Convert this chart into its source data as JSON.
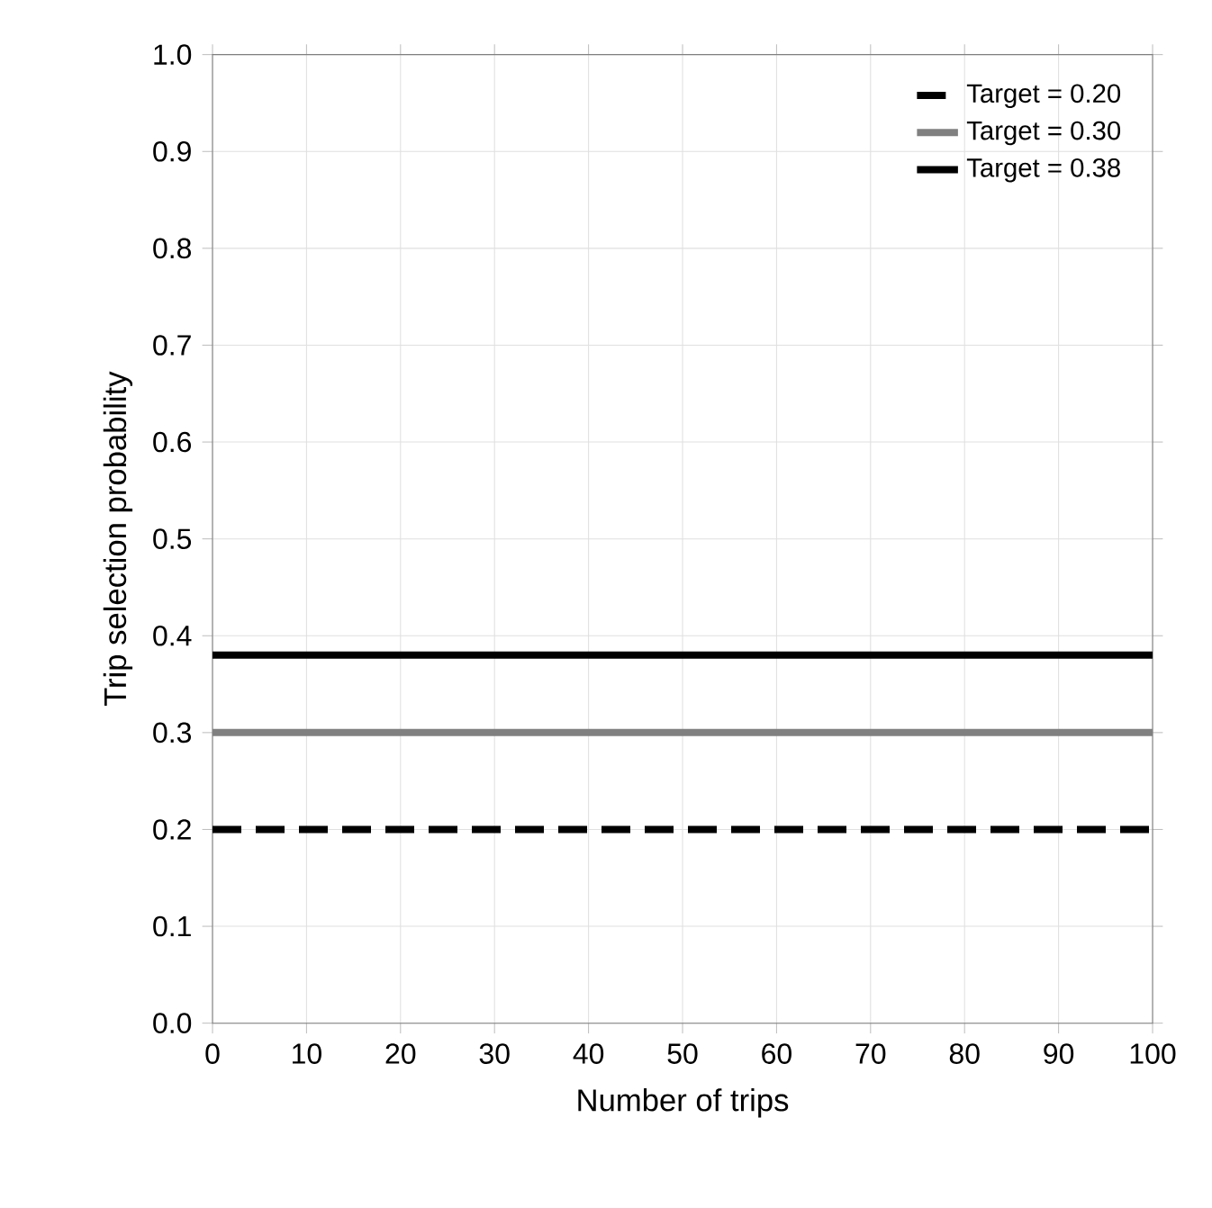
{
  "chart_data": {
    "type": "line",
    "xlabel": "Number of trips",
    "ylabel": "Trip selection probability",
    "xlim": [
      0,
      100
    ],
    "ylim": [
      0,
      1
    ],
    "xticks": [
      0,
      10,
      20,
      30,
      40,
      50,
      60,
      70,
      80,
      90,
      100
    ],
    "yticks": [
      {
        "value": 0,
        "label": "0.0"
      },
      {
        "value": 0.1,
        "label": "0.1"
      },
      {
        "value": 0.2,
        "label": "0.2"
      },
      {
        "value": 0.3,
        "label": "0.3"
      },
      {
        "value": 0.4,
        "label": "0.4"
      },
      {
        "value": 0.5,
        "label": "0.5"
      },
      {
        "value": 0.6,
        "label": "0.6"
      },
      {
        "value": 0.7,
        "label": "0.7"
      },
      {
        "value": 0.8,
        "label": "0.8"
      },
      {
        "value": 0.9,
        "label": "0.9"
      },
      {
        "value": 1,
        "label": "1.0"
      }
    ],
    "x": [
      0,
      100
    ],
    "grid": true,
    "legend": "top right",
    "marker": "none",
    "series": [
      {
        "name": "Target = 0.20",
        "color": "#000000",
        "line_style": "dashed",
        "values": [
          0.2,
          0.2
        ]
      },
      {
        "name": "Target = 0.30",
        "color": "#808080",
        "line_style": "solid",
        "values": [
          0.3,
          0.3
        ]
      },
      {
        "name": "Target = 0.38",
        "color": "#000000",
        "line_style": "solid",
        "values": [
          0.38,
          0.38
        ]
      }
    ]
  }
}
